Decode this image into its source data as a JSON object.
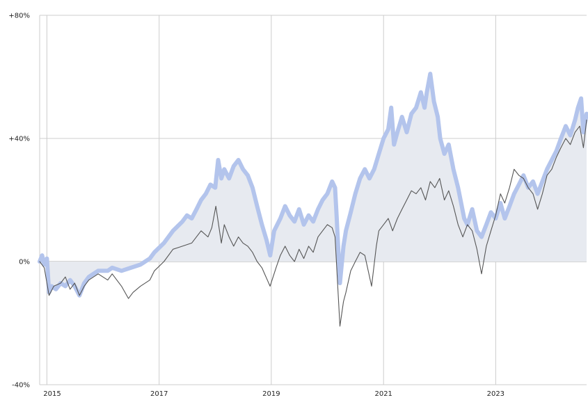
{
  "chart_data": {
    "type": "line",
    "title": "",
    "xlabel": "",
    "ylabel": "",
    "x_ticks": [
      "2015",
      "2017",
      "2019",
      "2021",
      "2023"
    ],
    "y_ticks": [
      "+80%",
      "+40%",
      "0%",
      "-40%"
    ],
    "y_tick_values": [
      80,
      40,
      0,
      -40
    ],
    "ylim": [
      -40,
      80
    ],
    "xlim": [
      "2014-11-15",
      "2024-08-15"
    ],
    "grid": true,
    "shaded_area_under": "comparison",
    "colors": {
      "comparison": "#b3c4ec",
      "primary": "#555555",
      "fill": "#e7eaf0",
      "grid": "#cccccc"
    },
    "series": [
      {
        "name": "",
        "role": "comparison",
        "color": "#b3c4ec",
        "points": [
          [
            "2014-11-15",
            0
          ],
          [
            "2014-12-01",
            2
          ],
          [
            "2014-12-15",
            -1
          ],
          [
            "2015-01-01",
            1
          ],
          [
            "2015-01-15",
            -10
          ],
          [
            "2015-02-01",
            -8
          ],
          [
            "2015-03-01",
            -9
          ],
          [
            "2015-04-01",
            -7
          ],
          [
            "2015-05-01",
            -8
          ],
          [
            "2015-06-01",
            -6
          ],
          [
            "2015-07-01",
            -8
          ],
          [
            "2015-08-01",
            -11
          ],
          [
            "2015-09-01",
            -7
          ],
          [
            "2015-10-01",
            -5
          ],
          [
            "2015-12-01",
            -3
          ],
          [
            "2016-02-01",
            -3
          ],
          [
            "2016-03-01",
            -2
          ],
          [
            "2016-05-01",
            -3
          ],
          [
            "2016-07-01",
            -2
          ],
          [
            "2016-09-01",
            -1
          ],
          [
            "2016-11-01",
            1
          ],
          [
            "2016-12-01",
            3
          ],
          [
            "2017-02-01",
            6
          ],
          [
            "2017-04-01",
            10
          ],
          [
            "2017-06-01",
            13
          ],
          [
            "2017-07-01",
            15
          ],
          [
            "2017-08-01",
            14
          ],
          [
            "2017-09-01",
            17
          ],
          [
            "2017-10-01",
            20
          ],
          [
            "2017-11-01",
            22
          ],
          [
            "2017-12-01",
            25
          ],
          [
            "2018-01-01",
            24
          ],
          [
            "2018-01-20",
            33
          ],
          [
            "2018-02-10",
            27
          ],
          [
            "2018-03-01",
            30
          ],
          [
            "2018-04-01",
            27
          ],
          [
            "2018-05-01",
            31
          ],
          [
            "2018-06-01",
            33
          ],
          [
            "2018-07-01",
            30
          ],
          [
            "2018-08-01",
            28
          ],
          [
            "2018-09-01",
            24
          ],
          [
            "2018-10-01",
            18
          ],
          [
            "2018-11-01",
            12
          ],
          [
            "2018-12-01",
            7
          ],
          [
            "2018-12-25",
            2
          ],
          [
            "2019-01-20",
            10
          ],
          [
            "2019-03-01",
            14
          ],
          [
            "2019-04-01",
            18
          ],
          [
            "2019-05-01",
            15
          ],
          [
            "2019-06-01",
            13
          ],
          [
            "2019-07-01",
            17
          ],
          [
            "2019-08-01",
            12
          ],
          [
            "2019-09-01",
            15
          ],
          [
            "2019-10-01",
            13
          ],
          [
            "2019-11-01",
            17
          ],
          [
            "2019-12-01",
            20
          ],
          [
            "2020-01-01",
            22
          ],
          [
            "2020-02-01",
            26
          ],
          [
            "2020-02-20",
            24
          ],
          [
            "2020-03-01",
            15
          ],
          [
            "2020-03-23",
            -7
          ],
          [
            "2020-04-15",
            5
          ],
          [
            "2020-05-01",
            10
          ],
          [
            "2020-06-01",
            16
          ],
          [
            "2020-07-01",
            22
          ],
          [
            "2020-08-01",
            27
          ],
          [
            "2020-09-01",
            30
          ],
          [
            "2020-10-01",
            27
          ],
          [
            "2020-11-01",
            30
          ],
          [
            "2020-12-01",
            35
          ],
          [
            "2021-01-01",
            40
          ],
          [
            "2021-02-01",
            43
          ],
          [
            "2021-02-20",
            50
          ],
          [
            "2021-03-10",
            38
          ],
          [
            "2021-04-01",
            42
          ],
          [
            "2021-05-01",
            47
          ],
          [
            "2021-06-01",
            42
          ],
          [
            "2021-07-01",
            48
          ],
          [
            "2021-08-01",
            50
          ],
          [
            "2021-09-01",
            55
          ],
          [
            "2021-09-25",
            50
          ],
          [
            "2021-10-10",
            55
          ],
          [
            "2021-11-01",
            61
          ],
          [
            "2021-11-25",
            52
          ],
          [
            "2021-12-20",
            47
          ],
          [
            "2022-01-05",
            40
          ],
          [
            "2022-02-01",
            35
          ],
          [
            "2022-03-01",
            38
          ],
          [
            "2022-04-01",
            30
          ],
          [
            "2022-05-01",
            24
          ],
          [
            "2022-06-10",
            14
          ],
          [
            "2022-07-01",
            12
          ],
          [
            "2022-08-01",
            17
          ],
          [
            "2022-09-01",
            10
          ],
          [
            "2022-10-01",
            8
          ],
          [
            "2022-11-01",
            12
          ],
          [
            "2022-12-01",
            16
          ],
          [
            "2023-01-01",
            14
          ],
          [
            "2023-02-01",
            19
          ],
          [
            "2023-03-01",
            14
          ],
          [
            "2023-04-01",
            18
          ],
          [
            "2023-05-01",
            22
          ],
          [
            "2023-06-01",
            25
          ],
          [
            "2023-07-01",
            28
          ],
          [
            "2023-08-01",
            24
          ],
          [
            "2023-09-01",
            26
          ],
          [
            "2023-10-01",
            22
          ],
          [
            "2023-11-01",
            26
          ],
          [
            "2023-12-01",
            30
          ],
          [
            "2024-01-01",
            33
          ],
          [
            "2024-02-01",
            36
          ],
          [
            "2024-03-01",
            40
          ],
          [
            "2024-04-01",
            44
          ],
          [
            "2024-05-01",
            41
          ],
          [
            "2024-06-01",
            46
          ],
          [
            "2024-06-20",
            50
          ],
          [
            "2024-07-10",
            53
          ],
          [
            "2024-07-25",
            42
          ],
          [
            "2024-08-15",
            48
          ]
        ]
      },
      {
        "name": "",
        "role": "primary",
        "color": "#555555",
        "points": [
          [
            "2014-11-15",
            0
          ],
          [
            "2014-12-15",
            -2
          ],
          [
            "2015-01-15",
            -11
          ],
          [
            "2015-02-15",
            -8
          ],
          [
            "2015-04-01",
            -7
          ],
          [
            "2015-05-01",
            -5
          ],
          [
            "2015-06-01",
            -9
          ],
          [
            "2015-07-01",
            -7
          ],
          [
            "2015-08-01",
            -11
          ],
          [
            "2015-09-01",
            -8
          ],
          [
            "2015-10-01",
            -6
          ],
          [
            "2015-12-01",
            -4
          ],
          [
            "2016-02-01",
            -6
          ],
          [
            "2016-03-01",
            -4
          ],
          [
            "2016-05-01",
            -8
          ],
          [
            "2016-06-15",
            -12
          ],
          [
            "2016-07-15",
            -10
          ],
          [
            "2016-09-01",
            -8
          ],
          [
            "2016-11-01",
            -6
          ],
          [
            "2016-12-01",
            -3
          ],
          [
            "2017-02-01",
            0
          ],
          [
            "2017-04-01",
            4
          ],
          [
            "2017-06-01",
            5
          ],
          [
            "2017-08-01",
            6
          ],
          [
            "2017-10-01",
            10
          ],
          [
            "2017-11-15",
            8
          ],
          [
            "2017-12-10",
            11
          ],
          [
            "2018-01-05",
            18
          ],
          [
            "2018-02-10",
            6
          ],
          [
            "2018-03-01",
            12
          ],
          [
            "2018-04-01",
            8
          ],
          [
            "2018-05-01",
            5
          ],
          [
            "2018-06-01",
            8
          ],
          [
            "2018-07-01",
            6
          ],
          [
            "2018-08-01",
            5
          ],
          [
            "2018-09-01",
            3
          ],
          [
            "2018-10-01",
            0
          ],
          [
            "2018-11-01",
            -2
          ],
          [
            "2018-12-24",
            -8
          ],
          [
            "2019-02-01",
            -2
          ],
          [
            "2019-03-01",
            2
          ],
          [
            "2019-04-01",
            5
          ],
          [
            "2019-05-01",
            2
          ],
          [
            "2019-06-01",
            0
          ],
          [
            "2019-07-01",
            4
          ],
          [
            "2019-08-01",
            1
          ],
          [
            "2019-09-01",
            5
          ],
          [
            "2019-10-01",
            3
          ],
          [
            "2019-11-01",
            8
          ],
          [
            "2019-12-01",
            10
          ],
          [
            "2020-01-01",
            12
          ],
          [
            "2020-02-01",
            11
          ],
          [
            "2020-02-20",
            8
          ],
          [
            "2020-03-23",
            -21
          ],
          [
            "2020-04-15",
            -13
          ],
          [
            "2020-05-01",
            -10
          ],
          [
            "2020-06-01",
            -3
          ],
          [
            "2020-07-01",
            0
          ],
          [
            "2020-08-01",
            3
          ],
          [
            "2020-09-01",
            2
          ],
          [
            "2020-10-15",
            -8
          ],
          [
            "2020-11-15",
            5
          ],
          [
            "2020-12-01",
            10
          ],
          [
            "2021-01-01",
            12
          ],
          [
            "2021-02-01",
            14
          ],
          [
            "2021-03-01",
            10
          ],
          [
            "2021-04-01",
            14
          ],
          [
            "2021-05-01",
            17
          ],
          [
            "2021-06-01",
            20
          ],
          [
            "2021-07-01",
            23
          ],
          [
            "2021-08-01",
            22
          ],
          [
            "2021-09-01",
            24
          ],
          [
            "2021-10-01",
            20
          ],
          [
            "2021-11-01",
            26
          ],
          [
            "2021-12-01",
            24
          ],
          [
            "2022-01-01",
            27
          ],
          [
            "2022-02-01",
            20
          ],
          [
            "2022-03-01",
            23
          ],
          [
            "2022-04-01",
            18
          ],
          [
            "2022-05-01",
            12
          ],
          [
            "2022-06-01",
            8
          ],
          [
            "2022-07-01",
            12
          ],
          [
            "2022-08-01",
            10
          ],
          [
            "2022-09-01",
            4
          ],
          [
            "2022-10-01",
            -4
          ],
          [
            "2022-11-01",
            5
          ],
          [
            "2022-12-01",
            10
          ],
          [
            "2023-01-01",
            15
          ],
          [
            "2023-02-01",
            22
          ],
          [
            "2023-03-01",
            19
          ],
          [
            "2023-04-01",
            24
          ],
          [
            "2023-05-01",
            30
          ],
          [
            "2023-06-01",
            28
          ],
          [
            "2023-07-01",
            27
          ],
          [
            "2023-08-01",
            24
          ],
          [
            "2023-09-01",
            22
          ],
          [
            "2023-10-01",
            17
          ],
          [
            "2023-11-01",
            22
          ],
          [
            "2023-12-01",
            28
          ],
          [
            "2024-01-01",
            30
          ],
          [
            "2024-02-01",
            34
          ],
          [
            "2024-03-01",
            37
          ],
          [
            "2024-04-01",
            40
          ],
          [
            "2024-05-01",
            38
          ],
          [
            "2024-06-01",
            42
          ],
          [
            "2024-07-01",
            44
          ],
          [
            "2024-07-25",
            37
          ],
          [
            "2024-08-15",
            46
          ]
        ]
      }
    ]
  }
}
